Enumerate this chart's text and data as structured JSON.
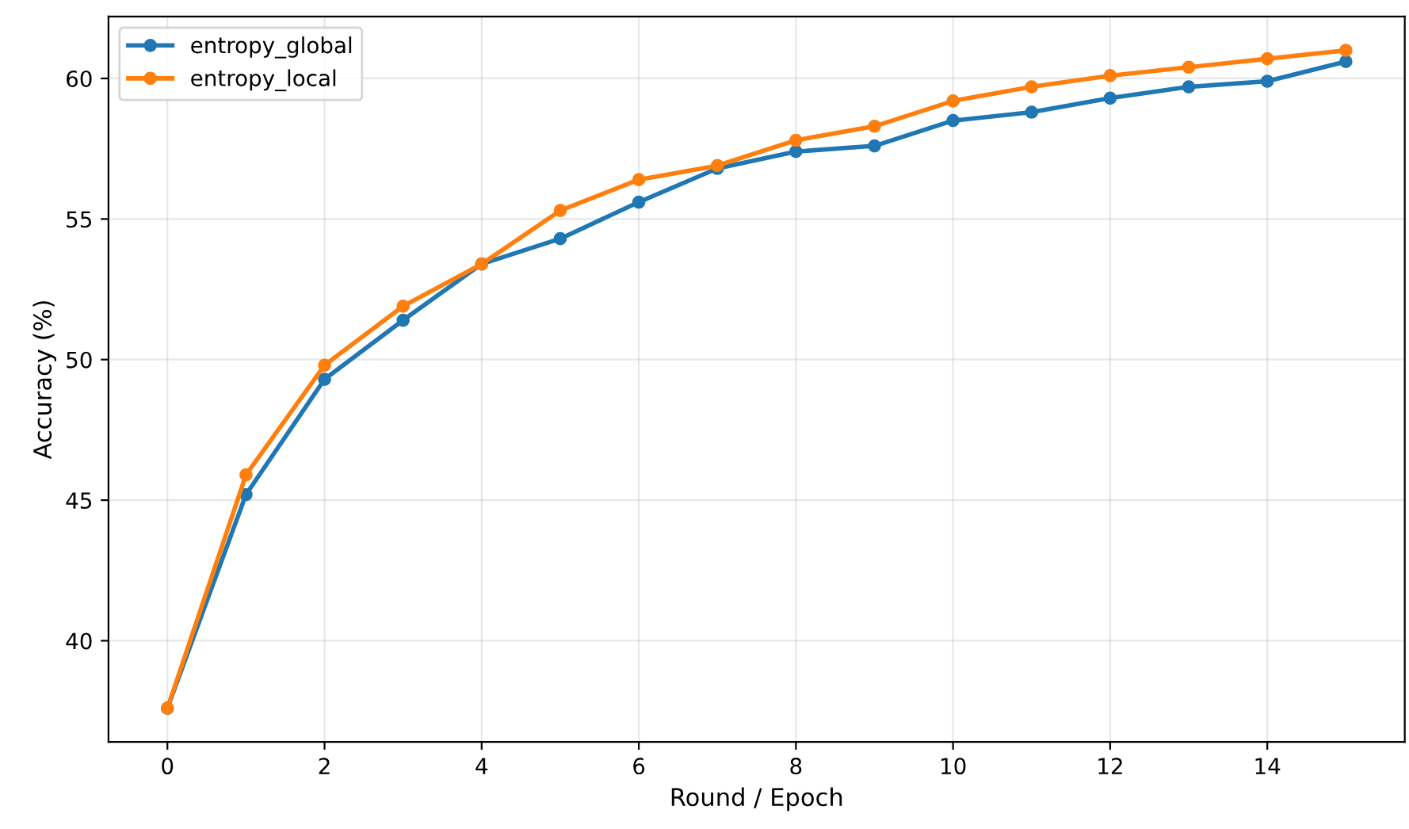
{
  "chart_data": {
    "type": "line",
    "xlabel": "Round / Epoch",
    "ylabel": "Accuracy (%)",
    "x": [
      0,
      1,
      2,
      3,
      4,
      5,
      6,
      7,
      8,
      9,
      10,
      11,
      12,
      13,
      14,
      15
    ],
    "series": [
      {
        "name": "entropy_global",
        "color": "#1f77b4",
        "values": [
          37.6,
          45.2,
          49.3,
          51.4,
          53.4,
          54.3,
          55.6,
          56.8,
          57.4,
          57.6,
          58.5,
          58.8,
          59.3,
          59.7,
          59.9,
          60.6
        ]
      },
      {
        "name": "entropy_local",
        "color": "#ff7f0e",
        "values": [
          37.6,
          45.9,
          49.8,
          51.9,
          53.4,
          55.3,
          56.4,
          56.9,
          57.8,
          58.3,
          59.2,
          59.7,
          60.1,
          60.4,
          60.7,
          61.0
        ]
      }
    ],
    "xlim": [
      -0.75,
      15.75
    ],
    "ylim": [
      36.4,
      62.2
    ],
    "xticks": [
      0,
      2,
      4,
      6,
      8,
      10,
      12,
      14
    ],
    "yticks": [
      40,
      45,
      50,
      55,
      60
    ],
    "grid": true,
    "legend": "top left",
    "marker": "circle",
    "line_style": "solid"
  }
}
